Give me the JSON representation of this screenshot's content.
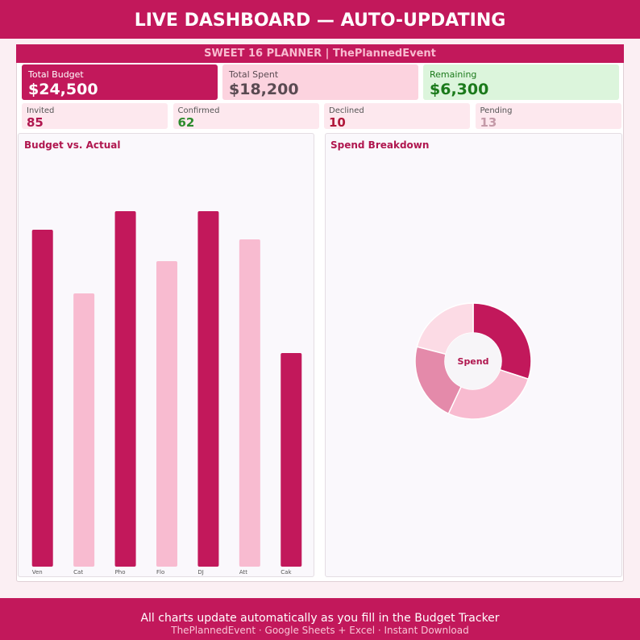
{
  "header": {
    "title": "LIVE DASHBOARD — AUTO-UPDATING"
  },
  "planner": {
    "title": "SWEET 16 PLANNER | ThePlannedEvent"
  },
  "kpis": [
    {
      "label": "Total Budget",
      "value": "$24,500"
    },
    {
      "label": "Total Spent",
      "value": "$18,200"
    },
    {
      "label": "Remaining",
      "value": "$6,300"
    }
  ],
  "guests": [
    {
      "label": "Invited",
      "value": "85",
      "color": "#b0174f"
    },
    {
      "label": "Confirmed",
      "value": "62",
      "color": "#2e8b2e"
    },
    {
      "label": "Declined",
      "value": "10",
      "color": "#b0173a"
    },
    {
      "label": "Pending",
      "value": "13",
      "color": "#c49aa8"
    }
  ],
  "bar_chart": {
    "type": "bar",
    "title": "Budget vs. Actual",
    "categories": [
      "Ven",
      "Cat",
      "Pho",
      "Flo",
      "DJ",
      "Att",
      "Cak"
    ],
    "values": [
      418,
      339,
      441,
      379,
      441,
      406,
      265
    ],
    "colors": [
      "#c2185b",
      "#f8bbd0",
      "#c2185b",
      "#f8bbd0",
      "#c2185b",
      "#f8bbd0",
      "#c2185b"
    ],
    "ylim": [
      0,
      508
    ]
  },
  "pie_chart": {
    "type": "pie",
    "title": "Spend Breakdown",
    "center_label": "Spend",
    "values": [
      30,
      27,
      22,
      21
    ],
    "colors": [
      "#c2185b",
      "#f8bbd0",
      "#e48aaa",
      "#fcdbe5"
    ]
  },
  "footer": {
    "line1": "All charts update automatically as you fill in the Budget Tracker",
    "line2": "ThePlannedEvent · Google Sheets + Excel · Instant Download"
  }
}
